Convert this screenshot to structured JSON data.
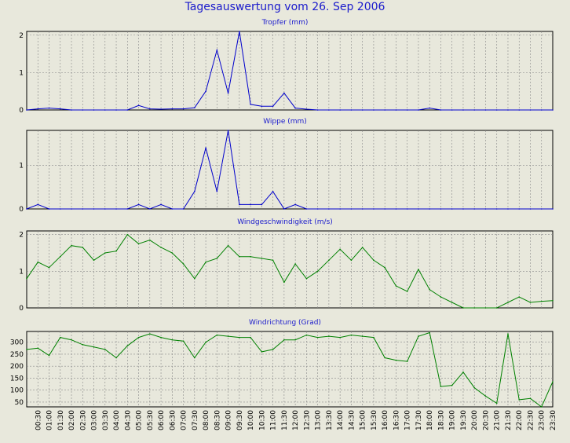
{
  "title": "Tagesauswertung vom 26. Sep 2006",
  "time_labels": [
    "00:30",
    "01:00",
    "01:30",
    "02:00",
    "02:30",
    "03:00",
    "03:30",
    "04:00",
    "04:30",
    "05:00",
    "05:30",
    "06:00",
    "06:30",
    "07:00",
    "07:30",
    "08:00",
    "08:30",
    "09:00",
    "09:30",
    "10:00",
    "10:30",
    "11:00",
    "11:30",
    "12:00",
    "12:30",
    "13:00",
    "13:30",
    "14:00",
    "14:30",
    "15:00",
    "15:30",
    "16:00",
    "16:30",
    "17:00",
    "17:30",
    "18:00",
    "18:30",
    "19:00",
    "19:30",
    "20:00",
    "20:30",
    "21:00",
    "21:30",
    "22:00",
    "22:30",
    "23:00",
    "23:30"
  ],
  "colors": {
    "blue_series": "#0000cc",
    "green_series": "#008000",
    "title_text": "#1a1acc",
    "background": "#e8e8dc",
    "plot_background": "#e8e8dc"
  },
  "chart_data": [
    {
      "type": "line",
      "title": "Tropfer (mm)",
      "ylim": [
        0,
        2.1
      ],
      "yticks": [
        0,
        1,
        2
      ],
      "x_count": 48,
      "series": [
        {
          "values": [
            0,
            0.03,
            0.05,
            0.03,
            0,
            0,
            0,
            0,
            0,
            0,
            0.12,
            0.03,
            0.02,
            0.03,
            0.03,
            0.06,
            0.5,
            1.6,
            0.45,
            2.1,
            0.15,
            0.1,
            0.1,
            0.45,
            0.05,
            0.02,
            0,
            0,
            0,
            0,
            0,
            0,
            0,
            0,
            0,
            0,
            0.05,
            0,
            0,
            0,
            0,
            0,
            0,
            0,
            0,
            0,
            0,
            0
          ]
        }
      ]
    },
    {
      "type": "line",
      "title": "Wippe (mm)",
      "ylim": [
        0,
        1.8
      ],
      "yticks": [
        0,
        1
      ],
      "x_count": 48,
      "series": [
        {
          "values": [
            0,
            0.1,
            0,
            0,
            0,
            0,
            0,
            0,
            0,
            0,
            0.1,
            0,
            0.1,
            0,
            0,
            0.4,
            1.4,
            0.4,
            1.8,
            0.1,
            0.1,
            0.1,
            0.4,
            0,
            0.1,
            0,
            0,
            0,
            0,
            0,
            0,
            0,
            0,
            0,
            0,
            0,
            0,
            0,
            0,
            0,
            0,
            0,
            0,
            0,
            0,
            0,
            0,
            0
          ]
        }
      ]
    },
    {
      "type": "line",
      "title": "Windgeschwindigkeit (m/s)",
      "ylim": [
        0,
        2.1
      ],
      "yticks": [
        0,
        1,
        2
      ],
      "x_count": 48,
      "series": [
        {
          "values": [
            0.8,
            1.25,
            1.1,
            1.4,
            1.7,
            1.65,
            1.3,
            1.5,
            1.55,
            2.0,
            1.75,
            1.85,
            1.65,
            1.5,
            1.2,
            0.8,
            1.25,
            1.35,
            1.7,
            1.4,
            1.4,
            1.35,
            1.3,
            0.7,
            1.2,
            0.8,
            1.0,
            1.3,
            1.6,
            1.3,
            1.65,
            1.3,
            1.1,
            0.6,
            0.45,
            1.05,
            0.5,
            0.3,
            0.15,
            0,
            0,
            0,
            0,
            0.15,
            0.3,
            0.15,
            0.18,
            0.2
          ]
        }
      ]
    },
    {
      "type": "line",
      "title": "Windrichtung (Grad)",
      "ylim": [
        30,
        345
      ],
      "yticks": [
        50,
        100,
        150,
        200,
        250,
        300
      ],
      "x_count": 48,
      "series": [
        {
          "values": [
            270,
            275,
            245,
            320,
            310,
            290,
            280,
            270,
            235,
            285,
            320,
            335,
            320,
            310,
            305,
            235,
            300,
            330,
            325,
            320,
            320,
            260,
            270,
            310,
            310,
            330,
            320,
            325,
            320,
            330,
            325,
            320,
            235,
            225,
            220,
            325,
            340,
            115,
            120,
            175,
            110,
            75,
            45,
            335,
            60,
            65,
            30,
            135
          ]
        }
      ]
    }
  ]
}
